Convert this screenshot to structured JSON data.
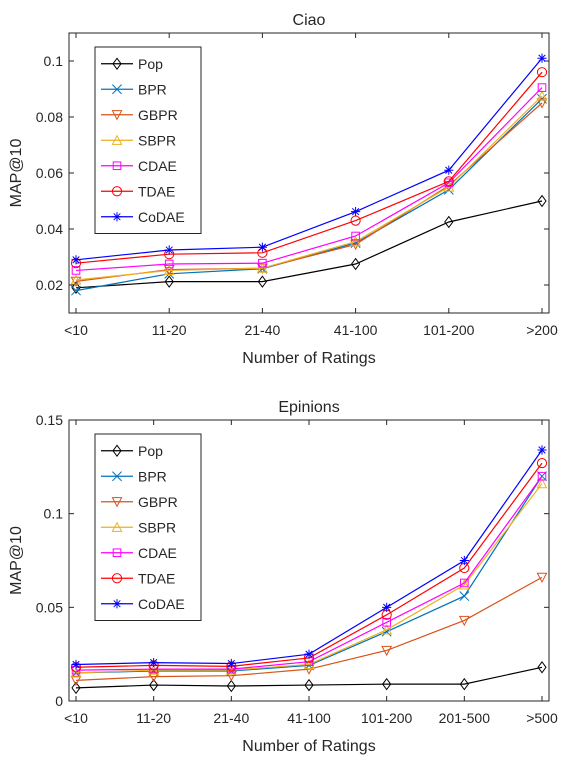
{
  "chart_data": [
    {
      "type": "line",
      "title": "Ciao",
      "xlabel": "Number of Ratings",
      "ylabel": "MAP@10",
      "categories": [
        "<10",
        "11-20",
        "21-40",
        "41-100",
        "101-200",
        ">200"
      ],
      "ylim": [
        0.01,
        0.11
      ],
      "yticks": [
        0.02,
        0.04,
        0.06,
        0.08,
        0.1
      ],
      "ytick_labels": [
        "0.02",
        "0.04",
        "0.06",
        "0.08",
        "0.1"
      ],
      "grid": false,
      "legend_position": "top-left",
      "series": [
        {
          "name": "Pop",
          "color": "#000000",
          "marker": "diamond",
          "values": [
            0.019,
            0.0212,
            0.0212,
            0.0275,
            0.0425,
            0.05
          ]
        },
        {
          "name": "BPR",
          "color": "#0072BD",
          "marker": "x",
          "values": [
            0.018,
            0.024,
            0.0258,
            0.035,
            0.054,
            0.0865
          ]
        },
        {
          "name": "GBPR",
          "color": "#D95319",
          "marker": "triangle-down",
          "values": [
            0.0213,
            0.0255,
            0.026,
            0.0345,
            0.0555,
            0.085
          ]
        },
        {
          "name": "SBPR",
          "color": "#EDB120",
          "marker": "triangle-up",
          "values": [
            0.0218,
            0.0252,
            0.026,
            0.0355,
            0.055,
            0.0875
          ]
        },
        {
          "name": "CDAE",
          "color": "#FF00FF",
          "marker": "square",
          "values": [
            0.0252,
            0.0275,
            0.0278,
            0.0375,
            0.0565,
            0.0905
          ]
        },
        {
          "name": "TDAE",
          "color": "#FF0000",
          "marker": "circle",
          "values": [
            0.0278,
            0.031,
            0.0315,
            0.043,
            0.057,
            0.096
          ]
        },
        {
          "name": "CoDAE",
          "color": "#0000FF",
          "marker": "star",
          "values": [
            0.029,
            0.0325,
            0.0335,
            0.0462,
            0.061,
            0.101
          ]
        }
      ]
    },
    {
      "type": "line",
      "title": "Epinions",
      "xlabel": "Number of Ratings",
      "ylabel": "MAP@10",
      "categories": [
        "<10",
        "11-20",
        "21-40",
        "41-100",
        "101-200",
        "201-500",
        ">500"
      ],
      "ylim": [
        0,
        0.15
      ],
      "yticks": [
        0,
        0.05,
        0.1,
        0.15
      ],
      "ytick_labels": [
        "0",
        "0.05",
        "0.1",
        "0.15"
      ],
      "grid": false,
      "legend_position": "top-left",
      "series": [
        {
          "name": "Pop",
          "color": "#000000",
          "marker": "diamond",
          "values": [
            0.007,
            0.0085,
            0.008,
            0.0085,
            0.009,
            0.009,
            0.018
          ]
        },
        {
          "name": "BPR",
          "color": "#0072BD",
          "marker": "x",
          "values": [
            0.015,
            0.016,
            0.016,
            0.019,
            0.037,
            0.056,
            0.12
          ]
        },
        {
          "name": "GBPR",
          "color": "#D95319",
          "marker": "triangle-down",
          "values": [
            0.011,
            0.013,
            0.0135,
            0.017,
            0.027,
            0.043,
            0.066
          ]
        },
        {
          "name": "SBPR",
          "color": "#EDB120",
          "marker": "triangle-up",
          "values": [
            0.015,
            0.0165,
            0.0165,
            0.0195,
            0.038,
            0.062,
            0.116
          ]
        },
        {
          "name": "CDAE",
          "color": "#FF00FF",
          "marker": "square",
          "values": [
            0.0165,
            0.017,
            0.017,
            0.021,
            0.042,
            0.063,
            0.12
          ]
        },
        {
          "name": "TDAE",
          "color": "#FF0000",
          "marker": "circle",
          "values": [
            0.018,
            0.019,
            0.0185,
            0.023,
            0.046,
            0.071,
            0.127
          ]
        },
        {
          "name": "CoDAE",
          "color": "#0000FF",
          "marker": "star",
          "values": [
            0.0195,
            0.0205,
            0.02,
            0.025,
            0.05,
            0.075,
            0.134
          ]
        }
      ]
    }
  ]
}
